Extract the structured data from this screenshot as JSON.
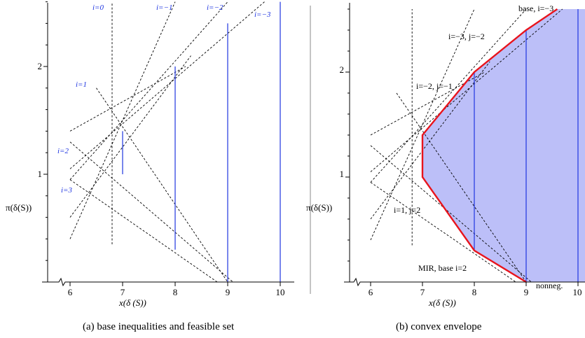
{
  "chart_data": [
    {
      "type": "line",
      "panel": "a",
      "caption": "(a)  base inequalities and feasible set",
      "xlabel": "x(δ (S))",
      "ylabel": "π(δ(S))",
      "xticks": [
        "6",
        "7",
        "8",
        "9",
        "10"
      ],
      "yticks": [
        "1",
        "2"
      ],
      "xlim": [
        5.6,
        10.2
      ],
      "ylim": [
        0,
        2.6
      ],
      "dashed_lines": [
        {
          "name": "i=0",
          "points": [
            [
              6.8,
              0.35
            ],
            [
              6.8,
              2.6
            ]
          ]
        },
        {
          "name": "i=-1",
          "points": [
            [
              6.0,
              0.4
            ],
            [
              8.0,
              2.6
            ]
          ]
        },
        {
          "name": "i=-2",
          "points": [
            [
              6.0,
              0.95
            ],
            [
              9.0,
              2.6
            ]
          ]
        },
        {
          "name": "i=-3",
          "points": [
            [
              6.0,
              1.05
            ],
            [
              9.7,
              2.6
            ]
          ]
        },
        {
          "name": "i=1",
          "points": [
            [
              6.5,
              1.8
            ],
            [
              9.0,
              0.0
            ]
          ]
        },
        {
          "name": "i=2",
          "points": [
            [
              6.0,
              1.3
            ],
            [
              9.1,
              0.0
            ]
          ]
        },
        {
          "name": "i=3",
          "points": [
            [
              6.0,
              0.95
            ],
            [
              8.8,
              0.0
            ]
          ]
        },
        {
          "points": [
            [
              6.0,
              1.4
            ],
            [
              8.2,
              2.0
            ]
          ]
        },
        {
          "points": [
            [
              6.0,
              0.6
            ],
            [
              8.3,
              2.1
            ]
          ]
        }
      ],
      "blue_segments": [
        {
          "x": 7,
          "y": [
            1.0,
            1.4
          ]
        },
        {
          "x": 8,
          "y": [
            0.3,
            2.0
          ]
        },
        {
          "x": 9,
          "y": [
            0.0,
            2.4
          ]
        },
        {
          "x": 10,
          "y": [
            0.0,
            2.6
          ]
        }
      ],
      "labels": [
        "i=0",
        "i=−1",
        "i=−2",
        "i=−3",
        "i=1",
        "i=2",
        "i=3"
      ]
    },
    {
      "type": "line",
      "panel": "b",
      "caption": "(b)  convex envelope",
      "xlabel": "x(δ (S))",
      "ylabel": "π(δ(S))",
      "xticks": [
        "6",
        "7",
        "8",
        "9",
        "10"
      ],
      "yticks": [
        "1",
        "2"
      ],
      "xlim": [
        5.6,
        10.2
      ],
      "ylim": [
        0,
        2.6
      ],
      "hull": [
        [
          9.0,
          0.0
        ],
        [
          8.0,
          0.3
        ],
        [
          7.0,
          1.0
        ],
        [
          7.0,
          1.4
        ],
        [
          8.0,
          2.0
        ],
        [
          9.0,
          2.4
        ],
        [
          9.6,
          2.6
        ]
      ],
      "hull_fill_right": 10.2,
      "blue_segments": [
        {
          "x": 8,
          "y": [
            0.3,
            2.0
          ]
        },
        {
          "x": 9,
          "y": [
            0.0,
            2.4
          ]
        },
        {
          "x": 10,
          "y": [
            0.0,
            2.6
          ]
        }
      ],
      "dashed_lines": [
        {
          "points": [
            [
              6.8,
              0.35
            ],
            [
              6.8,
              2.6
            ]
          ]
        },
        {
          "points": [
            [
              6.0,
              0.4
            ],
            [
              8.0,
              2.6
            ]
          ]
        },
        {
          "points": [
            [
              6.0,
              0.95
            ],
            [
              9.0,
              2.6
            ]
          ]
        },
        {
          "points": [
            [
              6.0,
              1.05
            ],
            [
              9.7,
              2.6
            ]
          ]
        },
        {
          "points": [
            [
              6.5,
              1.8
            ],
            [
              9.0,
              0.0
            ]
          ]
        },
        {
          "points": [
            [
              6.0,
              1.3
            ],
            [
              9.1,
              0.0
            ]
          ]
        },
        {
          "points": [
            [
              6.0,
              0.95
            ],
            [
              8.8,
              0.0
            ]
          ]
        },
        {
          "points": [
            [
              6.0,
              1.4
            ],
            [
              8.2,
              2.0
            ]
          ]
        },
        {
          "points": [
            [
              6.0,
              0.6
            ],
            [
              8.3,
              2.1
            ]
          ]
        }
      ],
      "annotations": [
        "base, i=−3",
        "i=−3, j=−2",
        "i=−2, j=−1",
        "i=1, j=2",
        "MIR, base i=2",
        "nonneg."
      ]
    }
  ],
  "colors": {
    "feasible_blue": "#1f35e0",
    "hull_red": "#e8141c",
    "hull_fill": "#bcbff8"
  }
}
